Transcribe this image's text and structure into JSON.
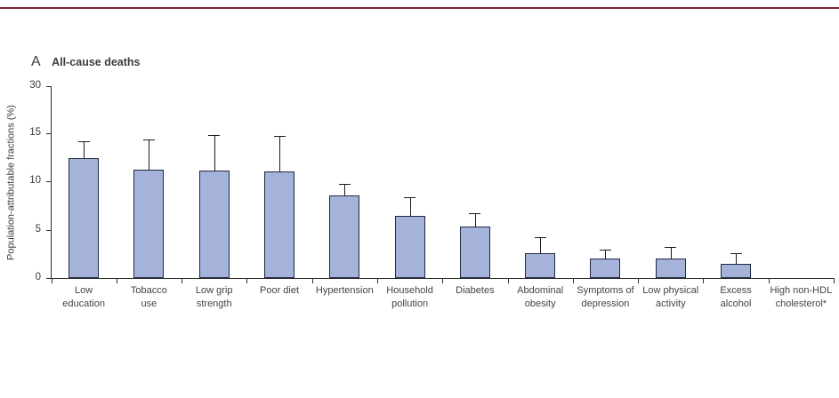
{
  "figure": {
    "panel_letter": "A",
    "panel_title": "All-cause deaths",
    "ylabel": "Population-attributable fractions (%)"
  },
  "colors": {
    "top_rule": "#7c2230",
    "bar_fill": "#a5b2d9",
    "bar_border": "#1f2940",
    "axis": "#2f2f2f",
    "text": "#3f3b3a"
  },
  "chart_data": {
    "type": "bar",
    "title": "A  All-cause deaths",
    "xlabel": "",
    "ylabel": "Population-attributable fractions (%)",
    "categories": [
      "Low education",
      "Tobacco use",
      "Low grip strength",
      "Poor diet",
      "Hypertension",
      "Household pollution",
      "Diabetes",
      "Abdominal obesity",
      "Symptoms of depression",
      "Low physical activity",
      "Excess alcohol",
      "High non-HDL cholesterol*"
    ],
    "category_lines": [
      [
        "Low",
        "education"
      ],
      [
        "Tobacco",
        "use"
      ],
      [
        "Low grip",
        "strength"
      ],
      [
        "Poor diet"
      ],
      [
        "Hypertension"
      ],
      [
        "Household",
        "pollution"
      ],
      [
        "Diabetes"
      ],
      [
        "Abdominal",
        "obesity"
      ],
      [
        "Symptoms of",
        "depression"
      ],
      [
        "Low physical",
        "activity"
      ],
      [
        "Excess",
        "alcohol"
      ],
      [
        "High non-HDL",
        "cholesterol*"
      ]
    ],
    "values": [
      12.4,
      11.2,
      11.1,
      11.0,
      8.6,
      6.4,
      5.3,
      2.6,
      2.0,
      2.0,
      1.5,
      0
    ],
    "upper_ci": [
      14.2,
      14.4,
      14.8,
      14.7,
      9.8,
      8.4,
      6.7,
      4.2,
      2.9,
      3.2,
      2.6,
      null
    ],
    "error_bars": "upper only",
    "y_tick_labels": [
      "30",
      "15",
      "10",
      "5",
      "0"
    ],
    "ylim": [
      0,
      30
    ],
    "axis_note": "axis compressed above 15 (30 label sits just above 15 region)",
    "grid": false,
    "legend": null
  }
}
